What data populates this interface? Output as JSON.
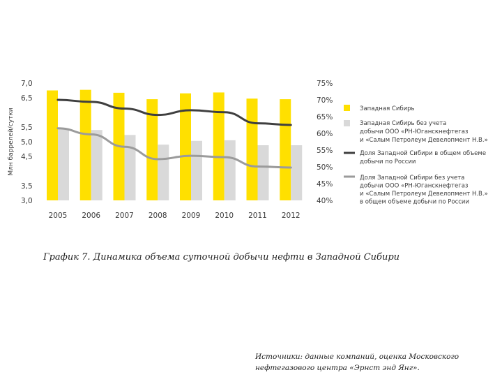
{
  "chart_data": {
    "type": "bar",
    "categories": [
      "2005",
      "2006",
      "2007",
      "2008",
      "2009",
      "2010",
      "2011",
      "2012"
    ],
    "ylabel": "Млн баррелей/сутки",
    "ylim": [
      3.0,
      7.0
    ],
    "y_ticks": [
      "7,0",
      "6,5",
      "5,5",
      "5,0",
      "4,5",
      "3,5",
      "3,0"
    ],
    "y2lim": [
      40,
      75
    ],
    "y2_ticks": [
      "75%",
      "70%",
      "65%",
      "60%",
      "55%",
      "50%",
      "45%",
      "40%"
    ],
    "grid": false,
    "legend_position": "right",
    "colors": {
      "bar1": "#FFE000",
      "bar2": "#D9D9D9",
      "line1": "#3F3F3F",
      "line2": "#9B9B9B"
    },
    "series": [
      {
        "name": "Западная Сибирь",
        "kind": "bar",
        "axis": "left",
        "values": [
          6.75,
          6.77,
          6.67,
          6.45,
          6.65,
          6.68,
          6.47,
          6.45
        ]
      },
      {
        "name": "Западная Сибирь без учета добычи ООО «РН-Юганскнефтегаз» и «Салым Петролеум Девелопмент Н.В.»",
        "kind": "bar",
        "axis": "left",
        "values": [
          5.45,
          5.4,
          5.23,
          4.9,
          5.03,
          5.05,
          4.88,
          4.88
        ]
      },
      {
        "name": "Доля Западной Сибири в общем объеме добычи по России",
        "kind": "line",
        "axis": "right",
        "values": [
          70.0,
          69.4,
          67.4,
          65.5,
          66.9,
          66.3,
          63.0,
          62.5
        ]
      },
      {
        "name": "Доля Западной Сибири без учета добычи ООО «РН-Юганскнефтегаз» и «Салым Петролеум Девелопмент Н.В.» в общем объеме добычи по России",
        "kind": "line",
        "axis": "right",
        "values": [
          61.5,
          59.7,
          56.0,
          52.3,
          53.3,
          52.9,
          50.1,
          49.8
        ]
      }
    ],
    "legend_lines": [
      [
        "Западная Сибирь"
      ],
      [
        "Западная Сибирь без учета",
        "добычи ООО «РН-Юганскнефтегаз",
        "и «Салым Петролеум Девелопмент Н.В.»"
      ],
      [
        "Доля Западной Сибири в общем объеме",
        "добычи по России"
      ],
      [
        "Доля Западной Сибири без учета",
        "добычи ООО «РН-Юганскнефтегаз",
        "и «Салым Петролеум Девелопмент Н.В.»",
        "в общем объеме добычи по России"
      ]
    ]
  },
  "caption": "График 7. Динамика объема суточной добычи нефти в Западной Сибири",
  "source": "Источники: данные компаний, оценка Московского нефтегазового центра «Эрнст энд Янг»."
}
